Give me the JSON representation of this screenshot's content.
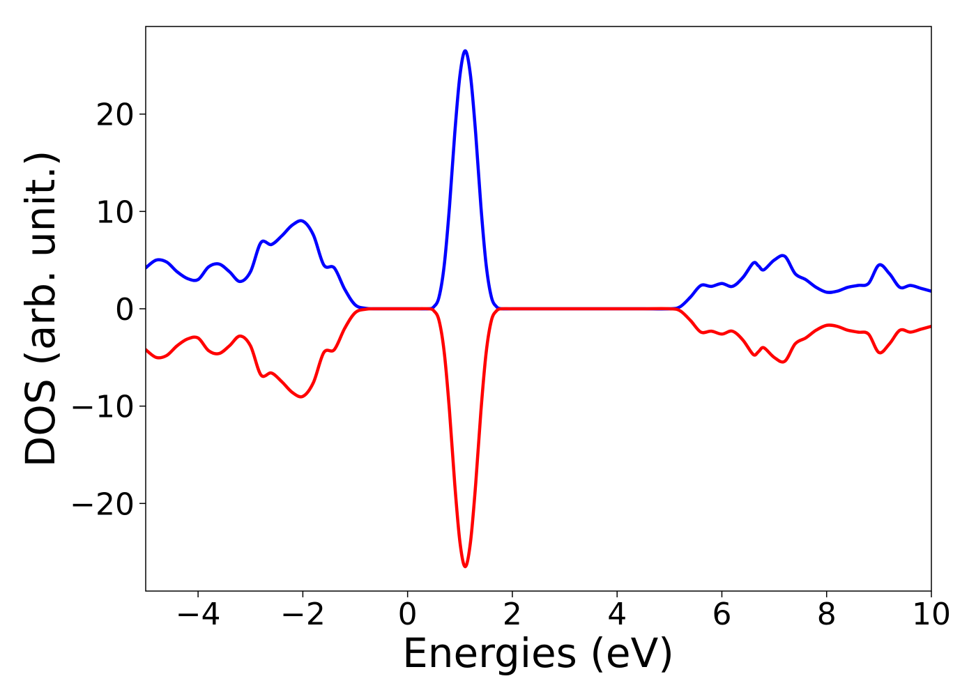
{
  "chart_data": {
    "type": "line",
    "title": "",
    "xlabel": "Energies (eV)",
    "ylabel": "DOS (arb. unit.)",
    "xlim": [
      -5,
      10
    ],
    "ylim": [
      -29,
      29
    ],
    "xticks": [
      -4,
      -2,
      0,
      2,
      4,
      6,
      8,
      10
    ],
    "xtick_labels": [
      "−4",
      "−2",
      "0",
      "2",
      "4",
      "6",
      "8",
      "10"
    ],
    "yticks": [
      -20,
      -10,
      0,
      10,
      20
    ],
    "ytick_labels": [
      "−20",
      "−10",
      "0",
      "10",
      "20"
    ],
    "grid": false,
    "legend": "none",
    "series": [
      {
        "color": "#0000ff",
        "x": [
          -5,
          -4.8,
          -4.6,
          -4.4,
          -4.2,
          -4.0,
          -3.8,
          -3.6,
          -3.4,
          -3.2,
          -3.0,
          -2.8,
          -2.6,
          -2.4,
          -2.2,
          -2.0,
          -1.8,
          -1.6,
          -1.4,
          -1.2,
          -1.0,
          -0.8,
          -0.6,
          -0.4,
          -0.2,
          0.0,
          0.2,
          0.4,
          0.5,
          0.6,
          0.7,
          0.8,
          0.9,
          1.0,
          1.1,
          1.2,
          1.3,
          1.4,
          1.5,
          1.6,
          1.7,
          1.8,
          2.0,
          2.5,
          3.0,
          3.5,
          4.0,
          4.5,
          5.0,
          5.2,
          5.4,
          5.6,
          5.8,
          6.0,
          6.2,
          6.4,
          6.6,
          6.7,
          6.8,
          7.0,
          7.2,
          7.4,
          7.6,
          7.8,
          8.0,
          8.2,
          8.4,
          8.6,
          8.8,
          9.0,
          9.2,
          9.4,
          9.6,
          9.8,
          10.0
        ],
        "y": [
          4.2,
          5.0,
          4.8,
          3.8,
          3.1,
          3.0,
          4.3,
          4.6,
          3.8,
          2.8,
          3.8,
          6.8,
          6.6,
          7.5,
          8.6,
          9.0,
          7.6,
          4.5,
          4.2,
          2.0,
          0.4,
          0.05,
          0.0,
          0.0,
          0.0,
          0.0,
          0.0,
          0.0,
          0.2,
          1.2,
          4.5,
          10.5,
          18.0,
          24.0,
          26.5,
          24.0,
          18.0,
          10.5,
          4.5,
          1.2,
          0.2,
          0.0,
          0.0,
          0.0,
          0.0,
          0.0,
          0.0,
          0.0,
          0.0,
          0.2,
          1.2,
          2.4,
          2.3,
          2.6,
          2.3,
          3.2,
          4.7,
          4.4,
          4.0,
          5.0,
          5.4,
          3.6,
          3.0,
          2.2,
          1.7,
          1.8,
          2.2,
          2.4,
          2.6,
          4.5,
          3.6,
          2.2,
          2.4,
          2.1,
          1.8
        ]
      },
      {
        "color": "#ff0000",
        "x": [
          -5,
          -4.8,
          -4.6,
          -4.4,
          -4.2,
          -4.0,
          -3.8,
          -3.6,
          -3.4,
          -3.2,
          -3.0,
          -2.8,
          -2.6,
          -2.4,
          -2.2,
          -2.0,
          -1.8,
          -1.6,
          -1.4,
          -1.2,
          -1.0,
          -0.8,
          -0.6,
          -0.4,
          -0.2,
          0.0,
          0.2,
          0.4,
          0.5,
          0.6,
          0.7,
          0.8,
          0.9,
          1.0,
          1.1,
          1.2,
          1.3,
          1.4,
          1.5,
          1.6,
          1.7,
          1.8,
          2.0,
          2.5,
          3.0,
          3.5,
          4.0,
          4.5,
          5.0,
          5.2,
          5.4,
          5.6,
          5.8,
          6.0,
          6.2,
          6.4,
          6.6,
          6.7,
          6.8,
          7.0,
          7.2,
          7.4,
          7.6,
          7.8,
          8.0,
          8.2,
          8.4,
          8.6,
          8.8,
          9.0,
          9.2,
          9.4,
          9.6,
          9.8,
          10.0
        ],
        "y": [
          -4.2,
          -5.0,
          -4.8,
          -3.8,
          -3.1,
          -3.0,
          -4.3,
          -4.6,
          -3.8,
          -2.8,
          -3.8,
          -6.8,
          -6.6,
          -7.5,
          -8.6,
          -9.0,
          -7.6,
          -4.5,
          -4.2,
          -2.0,
          -0.4,
          -0.05,
          0.0,
          0.0,
          0.0,
          0.0,
          0.0,
          0.0,
          -0.2,
          -1.2,
          -4.5,
          -10.5,
          -18.0,
          -24.0,
          -26.5,
          -24.0,
          -18.0,
          -10.5,
          -4.5,
          -1.2,
          -0.2,
          0.0,
          0.0,
          0.0,
          0.0,
          0.0,
          0.0,
          0.0,
          0.0,
          -0.2,
          -1.2,
          -2.4,
          -2.3,
          -2.6,
          -2.3,
          -3.2,
          -4.7,
          -4.4,
          -4.0,
          -5.0,
          -5.4,
          -3.6,
          -3.0,
          -2.2,
          -1.7,
          -1.8,
          -2.2,
          -2.4,
          -2.6,
          -4.5,
          -3.6,
          -2.2,
          -2.4,
          -2.1,
          -1.8
        ]
      }
    ]
  }
}
